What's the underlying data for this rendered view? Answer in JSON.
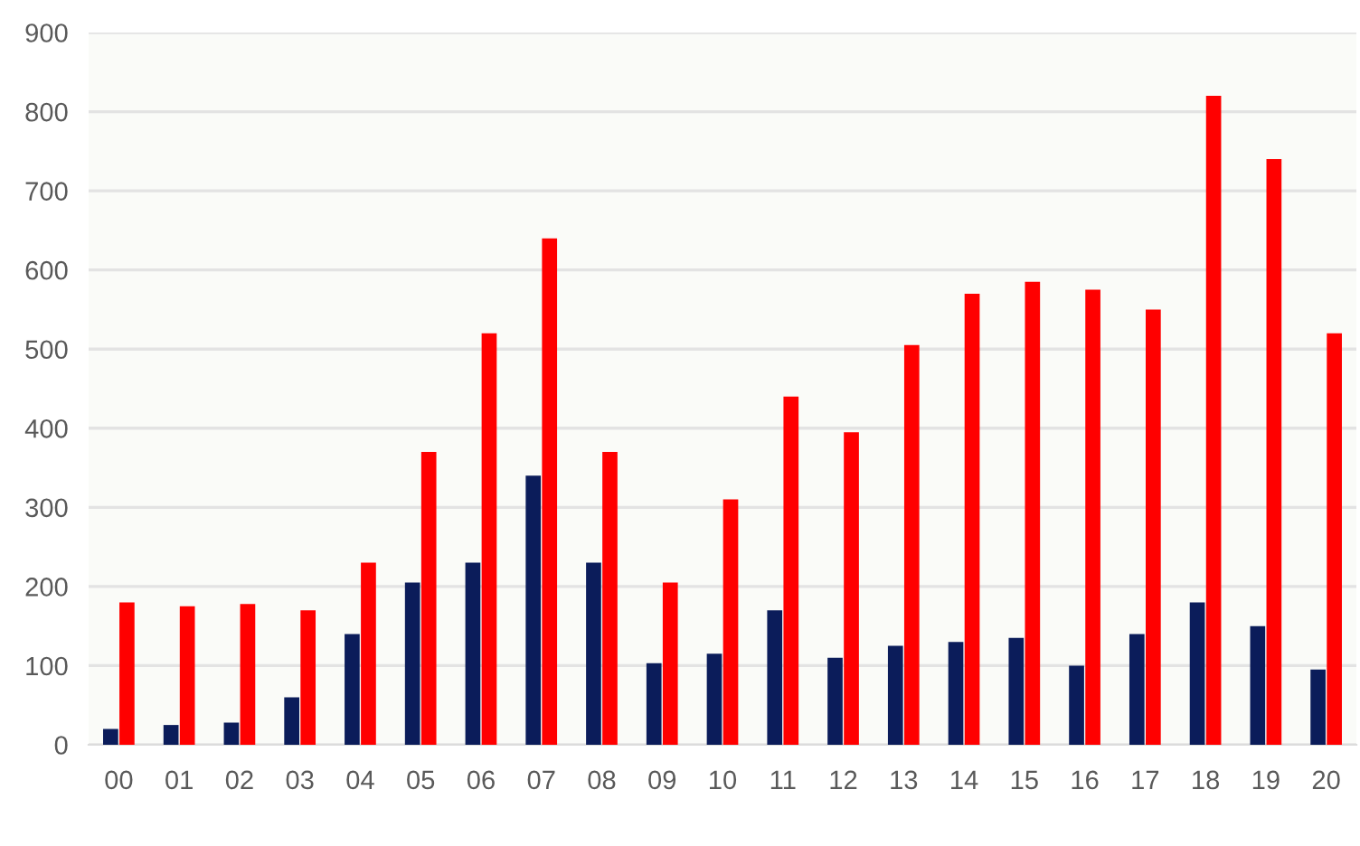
{
  "chart_data": {
    "type": "bar",
    "categories": [
      "00",
      "01",
      "02",
      "03",
      "04",
      "05",
      "06",
      "07",
      "08",
      "09",
      "10",
      "11",
      "12",
      "13",
      "14",
      "15",
      "16",
      "17",
      "18",
      "19",
      "20"
    ],
    "series": [
      {
        "color": "#0b1c5a",
        "values": [
          20,
          25,
          28,
          60,
          140,
          205,
          230,
          340,
          230,
          103,
          115,
          170,
          110,
          125,
          130,
          135,
          100,
          140,
          180,
          150,
          95
        ]
      },
      {
        "color": "#ff0000",
        "values": [
          180,
          175,
          178,
          170,
          230,
          370,
          520,
          640,
          370,
          205,
          310,
          440,
          395,
          505,
          570,
          585,
          575,
          550,
          820,
          740,
          520
        ]
      }
    ],
    "ylim": [
      0,
      900
    ],
    "yticks": [
      0,
      100,
      200,
      300,
      400,
      500,
      600,
      700,
      800,
      900
    ],
    "grid": "y"
  }
}
